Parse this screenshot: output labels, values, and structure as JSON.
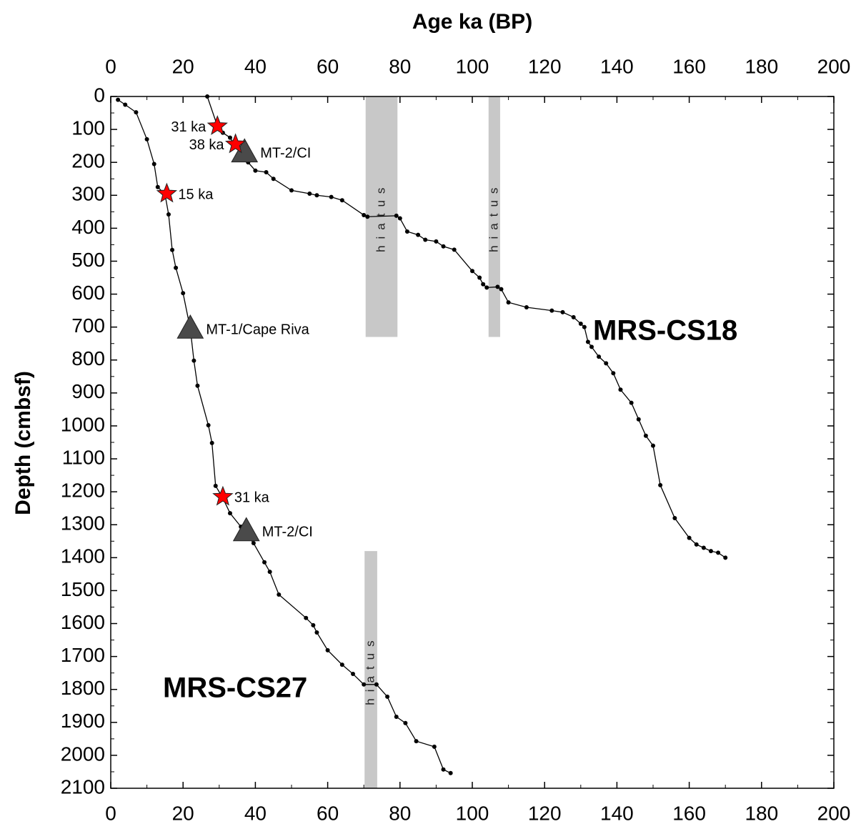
{
  "chart_data": {
    "type": "line",
    "x_label": "Age ka (BP)",
    "y_label": "Depth (cmbsf)",
    "xlim": [
      0,
      200
    ],
    "xticks": [
      0,
      20,
      40,
      60,
      80,
      100,
      120,
      140,
      160,
      180,
      200
    ],
    "ylim": [
      2100,
      0
    ],
    "yticks": [
      0,
      100,
      200,
      300,
      400,
      500,
      600,
      700,
      800,
      900,
      1000,
      1100,
      1200,
      1300,
      1400,
      1500,
      1600,
      1700,
      1800,
      1900,
      2000,
      2100
    ],
    "series": [
      {
        "name": "MRS-CS18",
        "color": "#000000",
        "x": [
          26.7,
          29.5,
          31,
          33,
          34.5,
          36,
          38,
          40,
          43,
          45,
          50,
          55,
          57,
          61,
          64,
          70,
          71,
          79,
          80,
          82,
          85,
          87,
          90,
          92,
          95,
          100,
          102,
          103,
          104,
          107,
          108,
          110,
          115,
          122,
          125,
          128,
          130,
          131,
          132,
          133,
          135,
          137,
          139,
          141,
          144,
          146,
          148,
          150,
          152,
          156,
          160,
          162,
          164,
          166,
          168,
          170
        ],
        "values": [
          0,
          90,
          110,
          125,
          150,
          175,
          200,
          225,
          230,
          250,
          285,
          295,
          300,
          305,
          315,
          360,
          365,
          362,
          370,
          410,
          420,
          435,
          440,
          455,
          465,
          530,
          550,
          570,
          580,
          578,
          585,
          625,
          640,
          650,
          655,
          670,
          690,
          700,
          745,
          760,
          790,
          810,
          840,
          890,
          930,
          980,
          1030,
          1060,
          1180,
          1280,
          1340,
          1360,
          1370,
          1380,
          1385,
          1400
        ]
      },
      {
        "name": "MRS-CS27",
        "color": "#000000",
        "x": [
          2,
          4,
          7,
          10,
          12,
          13,
          15,
          16,
          17,
          18,
          20,
          22,
          23,
          24,
          27,
          28,
          29,
          31,
          33,
          36,
          37.5,
          39.5,
          42.5,
          44,
          46.5,
          54,
          56,
          57,
          60,
          64,
          67,
          70,
          73.5,
          76.5,
          79,
          81.5,
          84.5,
          89.5,
          92,
          94
        ],
        "values": [
          10,
          25,
          48,
          130,
          205,
          275,
          297,
          358,
          466,
          520,
          597,
          705,
          802,
          878,
          998,
          1052,
          1182,
          1219,
          1265,
          1306,
          1328,
          1356,
          1414,
          1443,
          1512,
          1583,
          1605,
          1627,
          1681,
          1725,
          1753,
          1785,
          1785,
          1822,
          1883,
          1902,
          1957,
          1974,
          2043,
          2054
        ]
      }
    ],
    "hiatuses": [
      {
        "label": "hiatus",
        "x": [
          70.5,
          79.3
        ],
        "values": [
          0,
          730
        ]
      },
      {
        "label": "hiatus",
        "x": [
          104.5,
          107.7
        ],
        "values": [
          0,
          730
        ]
      },
      {
        "label": "hiatus",
        "x": [
          70.2,
          73.7
        ],
        "values": [
          1380,
          2100
        ]
      }
    ],
    "dates": [
      {
        "label": "31 ka",
        "x": 29.5,
        "value": 90
      },
      {
        "label": "38 ka",
        "x": 34.5,
        "value": 145
      },
      {
        "label": "15 ka",
        "x": 15.5,
        "value": 295
      },
      {
        "label": "31 ka",
        "x": 31,
        "value": 1215
      }
    ],
    "tephras": [
      {
        "label": "MT-2/CI",
        "x": 37,
        "value": 170
      },
      {
        "label": "MT-1/Cape Riva",
        "x": 22,
        "value": 705
      },
      {
        "label": "MT-2/CI",
        "x": 37.5,
        "value": 1320
      }
    ]
  }
}
